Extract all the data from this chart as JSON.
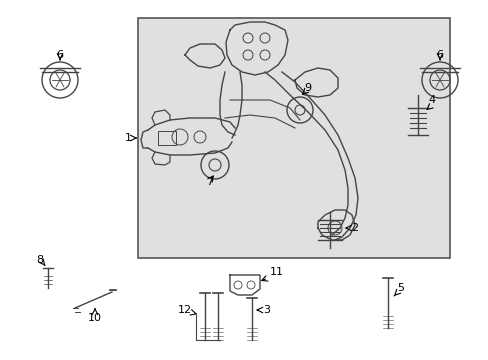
{
  "bg_color": "#ffffff",
  "box_bg": "#e0e0e0",
  "box_border": "#555555",
  "line_color": "#444444",
  "text_color": "#000000",
  "fig_width": 4.89,
  "fig_height": 3.6,
  "dpi": 100
}
